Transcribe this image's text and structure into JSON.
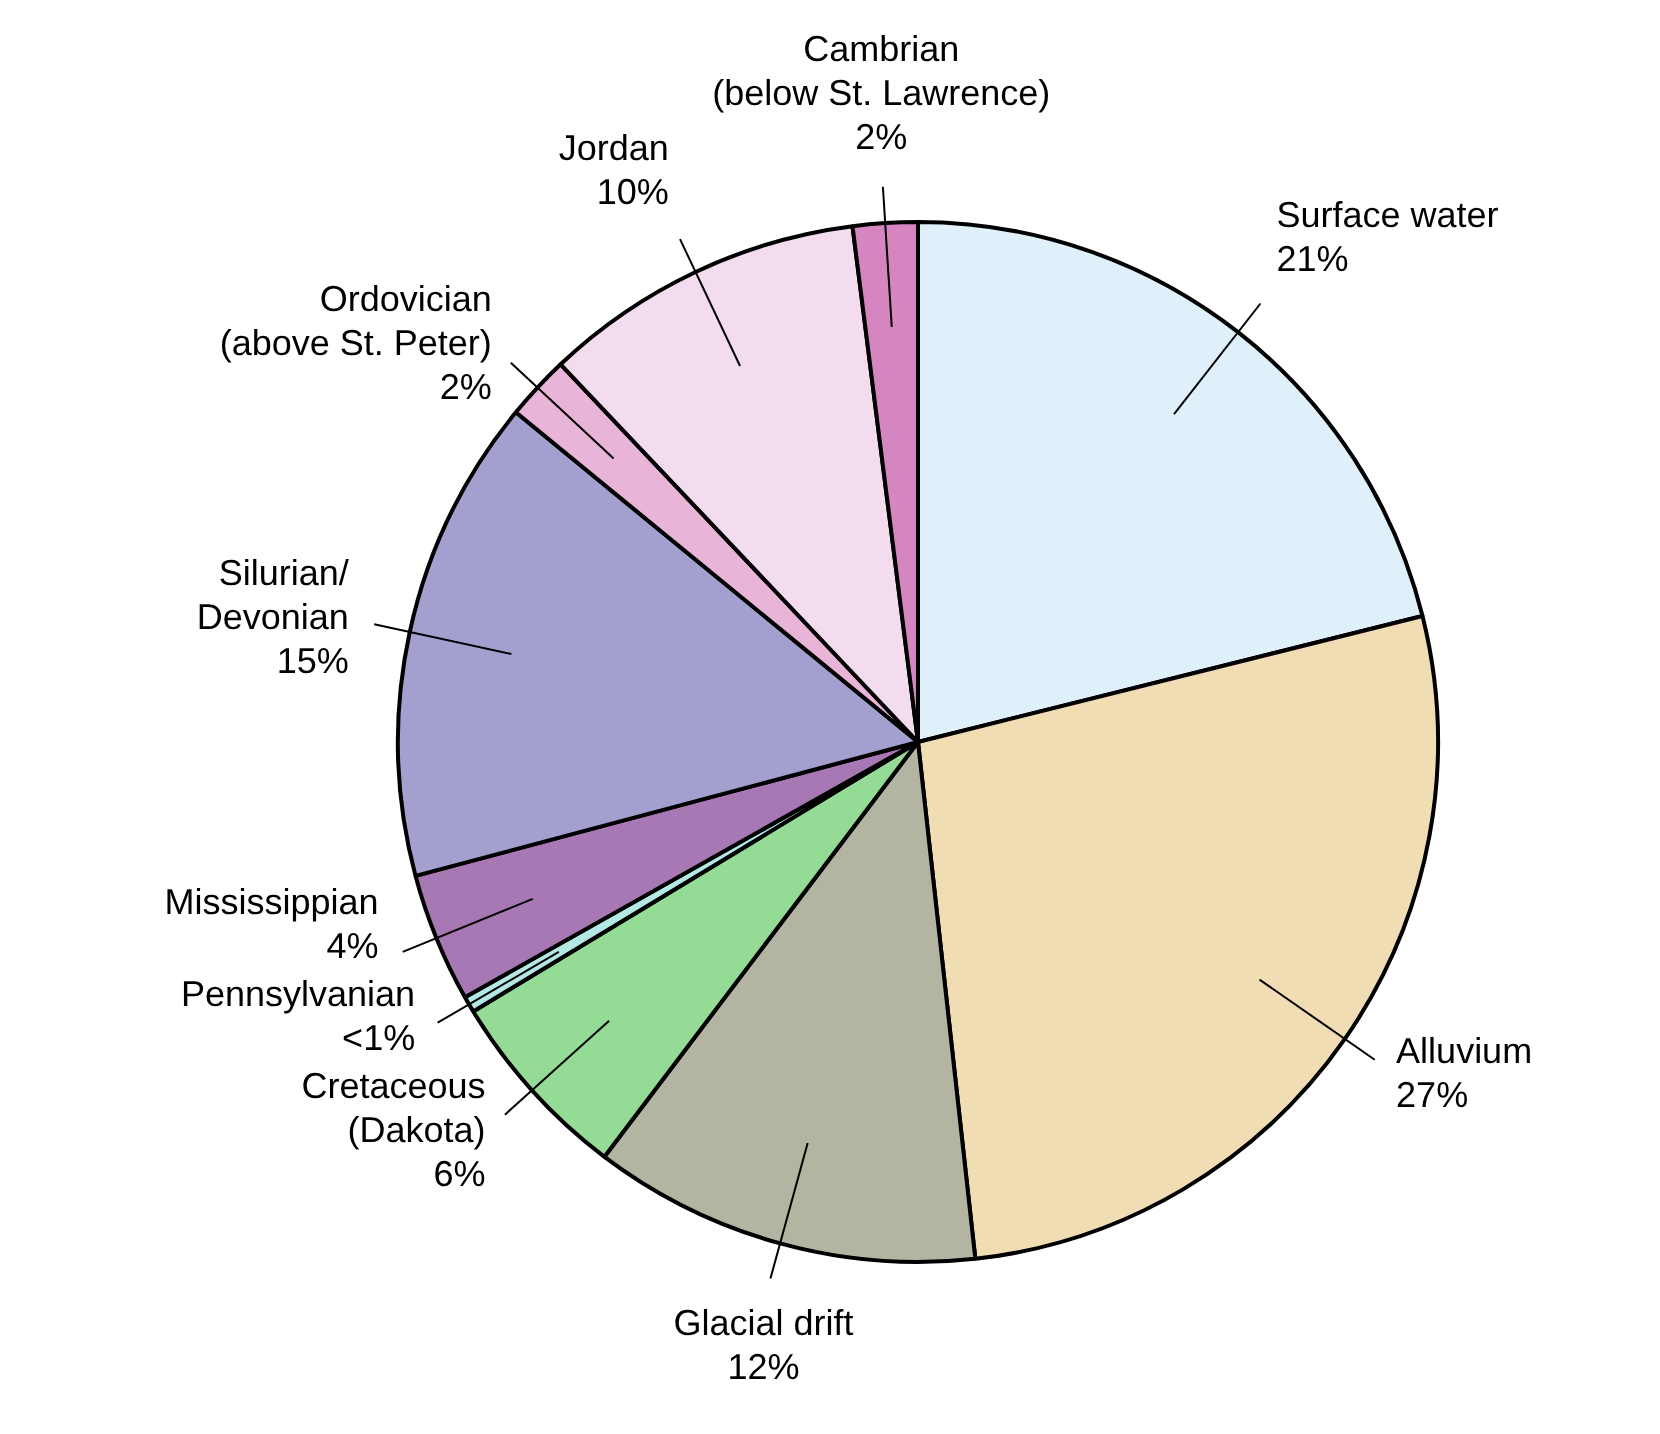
{
  "chart_data": {
    "type": "pie",
    "categories": [
      "Surface water",
      "Alluvium",
      "Glacial drift",
      "Cretaceous\n(Dakota)",
      "Pennsylvanian",
      "Mississippian",
      "Silurian/\nDevonian",
      "Ordovician\n(above St. Peter)",
      "Jordan",
      "Cambrian\n(below St. Lawrence)"
    ],
    "values": [
      21,
      27,
      12,
      6,
      0.5,
      4,
      15,
      2,
      10,
      2
    ],
    "value_labels": [
      "21%",
      "27%",
      "12%",
      "6%",
      "<1%",
      "4%",
      "15%",
      "2%",
      "10%",
      "2%"
    ],
    "colors": [
      "#dff0fb",
      "#f0ddb4",
      "#b4b4a2",
      "#94dc96",
      "#b4e8e4",
      "#a878b4",
      "#a3a0cf",
      "#e8b4d8",
      "#f2dcee",
      "#d586c1"
    ],
    "legend": false
  }
}
